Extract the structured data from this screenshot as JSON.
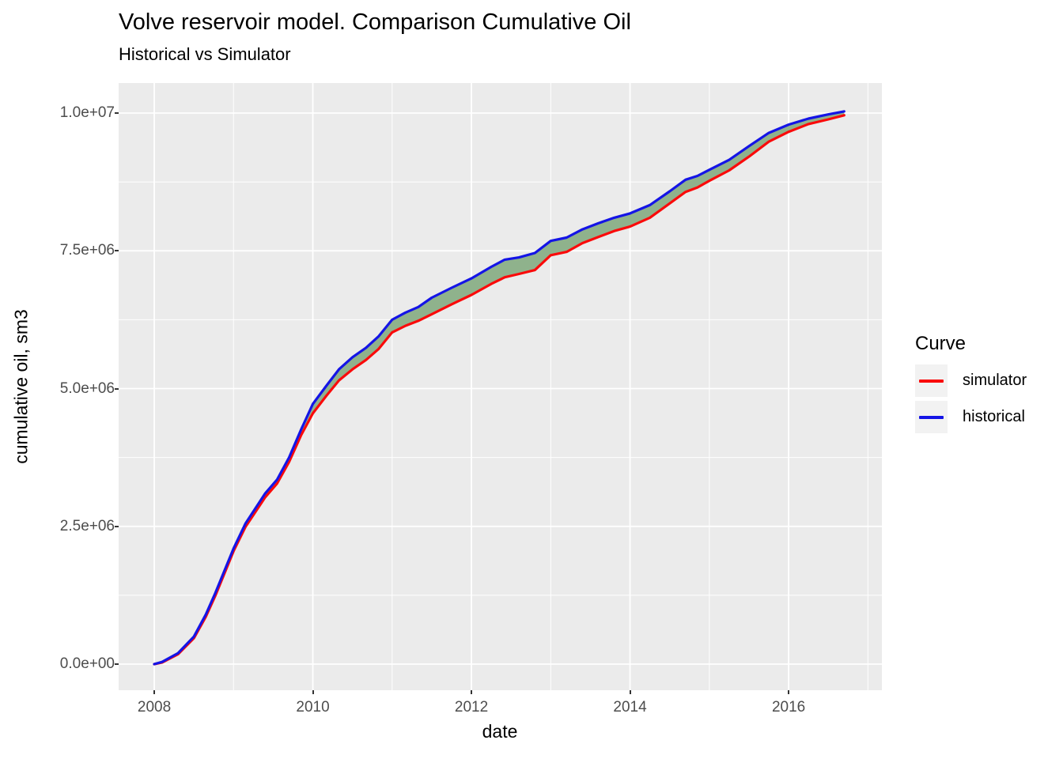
{
  "header": {
    "title": "Volve reservoir model. Comparison Cumulative Oil",
    "subtitle": "Historical vs Simulator"
  },
  "legend": {
    "title": "Curve",
    "entries": [
      {
        "label": "simulator",
        "color": "#FA0A0A"
      },
      {
        "label": "historical",
        "color": "#1414E6"
      }
    ]
  },
  "chart_data": {
    "type": "line",
    "title": "Volve reservoir model. Comparison Cumulative Oil",
    "subtitle": "Historical vs Simulator",
    "xlabel": "date",
    "ylabel": "cumulative oil, sm3",
    "grid": true,
    "legend_position": "right",
    "panel_bg": "#EBEBEB",
    "grid_color": "#FFFFFF",
    "ribbon_fill": "#8FB28C",
    "x_domain": [
      2007.551,
      2017.176
    ],
    "y_domain": [
      -473000,
      10545000
    ],
    "x_ticks": {
      "labels": [
        "2008",
        "2010",
        "2012",
        "2014",
        "2016"
      ],
      "values": [
        2008,
        2010,
        2012,
        2014,
        2016
      ],
      "minor_values": [
        2009,
        2011,
        2013,
        2015,
        2017
      ]
    },
    "y_ticks": {
      "labels": [
        "0.0e+00",
        "2.5e+06",
        "5.0e+06",
        "7.5e+06",
        "1.0e+07"
      ],
      "values": [
        0,
        2500000,
        5000000,
        7500000,
        10000000
      ],
      "minor_values": [
        1250000,
        3750000,
        6250000,
        8750000
      ]
    },
    "series": [
      {
        "name": "simulator",
        "color": "#FA0A0A",
        "points": [
          [
            2008.0,
            0
          ],
          [
            2008.1,
            30000
          ],
          [
            2008.3,
            180000
          ],
          [
            2008.5,
            470000
          ],
          [
            2008.65,
            860000
          ],
          [
            2008.77,
            1240000
          ],
          [
            2009.0,
            2050000
          ],
          [
            2009.15,
            2490000
          ],
          [
            2009.4,
            3030000
          ],
          [
            2009.55,
            3280000
          ],
          [
            2009.7,
            3670000
          ],
          [
            2009.85,
            4150000
          ],
          [
            2010.0,
            4550000
          ],
          [
            2010.17,
            4870000
          ],
          [
            2010.33,
            5150000
          ],
          [
            2010.5,
            5350000
          ],
          [
            2010.67,
            5520000
          ],
          [
            2010.83,
            5720000
          ],
          [
            2011.0,
            6020000
          ],
          [
            2011.17,
            6140000
          ],
          [
            2011.33,
            6230000
          ],
          [
            2011.5,
            6350000
          ],
          [
            2011.75,
            6530000
          ],
          [
            2012.0,
            6700000
          ],
          [
            2012.25,
            6900000
          ],
          [
            2012.42,
            7020000
          ],
          [
            2012.6,
            7080000
          ],
          [
            2012.8,
            7150000
          ],
          [
            2013.0,
            7420000
          ],
          [
            2013.2,
            7480000
          ],
          [
            2013.4,
            7640000
          ],
          [
            2013.6,
            7750000
          ],
          [
            2013.8,
            7860000
          ],
          [
            2014.0,
            7940000
          ],
          [
            2014.25,
            8100000
          ],
          [
            2014.5,
            8360000
          ],
          [
            2014.7,
            8570000
          ],
          [
            2014.85,
            8650000
          ],
          [
            2015.0,
            8770000
          ],
          [
            2015.25,
            8960000
          ],
          [
            2015.5,
            9210000
          ],
          [
            2015.75,
            9480000
          ],
          [
            2016.0,
            9660000
          ],
          [
            2016.25,
            9800000
          ],
          [
            2016.5,
            9885000
          ],
          [
            2016.7,
            9960000
          ]
        ]
      },
      {
        "name": "historical",
        "color": "#1414E6",
        "points": [
          [
            2008.0,
            0
          ],
          [
            2008.1,
            40000
          ],
          [
            2008.3,
            200000
          ],
          [
            2008.5,
            500000
          ],
          [
            2008.65,
            900000
          ],
          [
            2008.77,
            1290000
          ],
          [
            2009.0,
            2100000
          ],
          [
            2009.15,
            2550000
          ],
          [
            2009.4,
            3100000
          ],
          [
            2009.55,
            3350000
          ],
          [
            2009.7,
            3750000
          ],
          [
            2009.85,
            4250000
          ],
          [
            2010.0,
            4720000
          ],
          [
            2010.17,
            5050000
          ],
          [
            2010.33,
            5350000
          ],
          [
            2010.5,
            5570000
          ],
          [
            2010.67,
            5740000
          ],
          [
            2010.83,
            5950000
          ],
          [
            2011.0,
            6250000
          ],
          [
            2011.17,
            6380000
          ],
          [
            2011.33,
            6480000
          ],
          [
            2011.5,
            6650000
          ],
          [
            2011.75,
            6830000
          ],
          [
            2012.0,
            7000000
          ],
          [
            2012.25,
            7210000
          ],
          [
            2012.42,
            7340000
          ],
          [
            2012.6,
            7380000
          ],
          [
            2012.8,
            7460000
          ],
          [
            2013.0,
            7680000
          ],
          [
            2013.2,
            7740000
          ],
          [
            2013.4,
            7890000
          ],
          [
            2013.6,
            8000000
          ],
          [
            2013.8,
            8100000
          ],
          [
            2014.0,
            8180000
          ],
          [
            2014.25,
            8330000
          ],
          [
            2014.5,
            8580000
          ],
          [
            2014.7,
            8790000
          ],
          [
            2014.85,
            8860000
          ],
          [
            2015.0,
            8970000
          ],
          [
            2015.25,
            9150000
          ],
          [
            2015.5,
            9400000
          ],
          [
            2015.75,
            9640000
          ],
          [
            2016.0,
            9790000
          ],
          [
            2016.25,
            9900000
          ],
          [
            2016.5,
            9975000
          ],
          [
            2016.7,
            10030000
          ]
        ]
      }
    ]
  }
}
